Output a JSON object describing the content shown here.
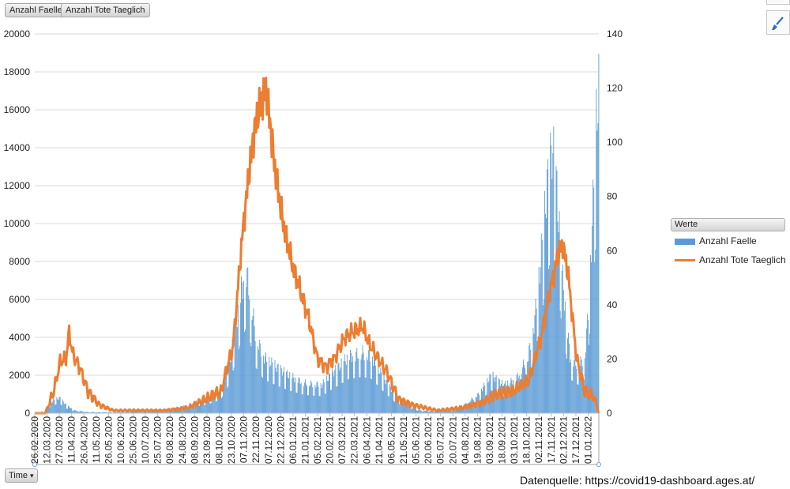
{
  "field_buttons": [
    "Anzahl Faelle",
    "Anzahl Tote Taeglich"
  ],
  "axis_button": {
    "label": "Time",
    "arrow": "▾"
  },
  "source_text": "Datenquelle: https://covid19-dashboard.ages.at/",
  "colors": {
    "cases": "#5b9bd5",
    "deaths": "#ed7d31",
    "grid": "#d9d9d9"
  },
  "legend": {
    "header": "Werte",
    "placement": "right",
    "items": [
      "Anzahl Faelle",
      "Anzahl Tote Taeglich"
    ]
  },
  "icons": {
    "format_tool": "paintbrush-icon"
  },
  "chart_data": {
    "type": "bar+line",
    "xlabel": "",
    "ylabel": "",
    "x_range": [
      "2020-02-26",
      "2022-01-14"
    ],
    "x_tick_step_days": 15,
    "x_ticks": [
      "26.02.2020",
      "12.03.2020",
      "27.03.2020",
      "11.04.2020",
      "26.04.2020",
      "11.05.2020",
      "26.05.2020",
      "10.06.2020",
      "25.06.2020",
      "10.07.2020",
      "25.07.2020",
      "09.08.2020",
      "24.08.2020",
      "08.09.2020",
      "23.09.2020",
      "08.10.2020",
      "23.10.2020",
      "07.11.2020",
      "22.11.2020",
      "07.12.2020",
      "22.12.2020",
      "06.01.2021",
      "21.01.2021",
      "05.02.2021",
      "20.02.2021",
      "07.03.2021",
      "22.03.2021",
      "06.04.2021",
      "21.04.2021",
      "06.05.2021",
      "21.05.2021",
      "05.06.2021",
      "20.06.2021",
      "05.07.2021",
      "20.07.2021",
      "04.08.2021",
      "19.08.2021",
      "03.09.2021",
      "18.09.2021",
      "03.10.2021",
      "18.10.2021",
      "02.11.2021",
      "17.11.2021",
      "02.12.2021",
      "17.12.2021",
      "01.01.2022"
    ],
    "y_left": {
      "range": [
        0,
        20000
      ],
      "ticks": [
        "0",
        "2000",
        "4000",
        "6000",
        "8000",
        "10000",
        "12000",
        "14000",
        "16000",
        "18000",
        "20000"
      ]
    },
    "y_right": {
      "range": [
        0,
        140
      ],
      "ticks": [
        "0",
        "20",
        "40",
        "60",
        "80",
        "100",
        "120",
        "140"
      ]
    },
    "grid": "horizontal",
    "series": [
      {
        "name": "Anzahl Faelle",
        "kind": "bar",
        "axis": "left",
        "keyframes": [
          [
            "2020-02-26",
            0
          ],
          [
            "2020-03-08",
            100
          ],
          [
            "2020-03-15",
            500
          ],
          [
            "2020-03-22",
            750
          ],
          [
            "2020-03-28",
            800
          ],
          [
            "2020-04-05",
            400
          ],
          [
            "2020-04-15",
            150
          ],
          [
            "2020-05-01",
            60
          ],
          [
            "2020-06-01",
            50
          ],
          [
            "2020-07-01",
            100
          ],
          [
            "2020-08-01",
            150
          ],
          [
            "2020-08-20",
            300
          ],
          [
            "2020-09-10",
            600
          ],
          [
            "2020-09-25",
            800
          ],
          [
            "2020-10-10",
            1200
          ],
          [
            "2020-10-20",
            2500
          ],
          [
            "2020-10-28",
            4500
          ],
          [
            "2020-11-04",
            6500
          ],
          [
            "2020-11-10",
            7500
          ],
          [
            "2020-11-14",
            6500
          ],
          [
            "2020-11-22",
            4000
          ],
          [
            "2020-12-01",
            3000
          ],
          [
            "2020-12-15",
            2500
          ],
          [
            "2021-01-01",
            2000
          ],
          [
            "2021-01-20",
            1600
          ],
          [
            "2021-02-10",
            1500
          ],
          [
            "2021-02-25",
            2200
          ],
          [
            "2021-03-15",
            3000
          ],
          [
            "2021-04-01",
            3200
          ],
          [
            "2021-04-12",
            3000
          ],
          [
            "2021-04-25",
            2000
          ],
          [
            "2021-05-10",
            1000
          ],
          [
            "2021-05-25",
            500
          ],
          [
            "2021-06-10",
            150
          ],
          [
            "2021-07-01",
            120
          ],
          [
            "2021-07-20",
            250
          ],
          [
            "2021-08-05",
            500
          ],
          [
            "2021-08-20",
            1000
          ],
          [
            "2021-09-05",
            2000
          ],
          [
            "2021-09-20",
            1500
          ],
          [
            "2021-10-05",
            1800
          ],
          [
            "2021-10-20",
            3000
          ],
          [
            "2021-10-28",
            5000
          ],
          [
            "2021-11-05",
            8500
          ],
          [
            "2021-11-12",
            12000
          ],
          [
            "2021-11-18",
            14000
          ],
          [
            "2021-11-22",
            13000
          ],
          [
            "2021-12-01",
            7000
          ],
          [
            "2021-12-10",
            3000
          ],
          [
            "2021-12-20",
            2500
          ],
          [
            "2021-12-28",
            3000
          ],
          [
            "2022-01-02",
            6000
          ],
          [
            "2022-01-07",
            11000
          ],
          [
            "2022-01-11",
            15500
          ],
          [
            "2022-01-14",
            17300
          ]
        ]
      },
      {
        "name": "Anzahl Tote Taeglich",
        "kind": "line",
        "axis": "right",
        "keyframes": [
          [
            "2020-02-26",
            0
          ],
          [
            "2020-03-10",
            0
          ],
          [
            "2020-03-20",
            8
          ],
          [
            "2020-03-28",
            19
          ],
          [
            "2020-04-04",
            20
          ],
          [
            "2020-04-08",
            30
          ],
          [
            "2020-04-12",
            22
          ],
          [
            "2020-04-22",
            16
          ],
          [
            "2020-05-01",
            8
          ],
          [
            "2020-05-15",
            3
          ],
          [
            "2020-06-01",
            1
          ],
          [
            "2020-07-01",
            1
          ],
          [
            "2020-08-01",
            1
          ],
          [
            "2020-09-01",
            2
          ],
          [
            "2020-09-20",
            5
          ],
          [
            "2020-10-10",
            8
          ],
          [
            "2020-10-25",
            25
          ],
          [
            "2020-11-05",
            65
          ],
          [
            "2020-11-12",
            85
          ],
          [
            "2020-11-20",
            105
          ],
          [
            "2020-11-28",
            115
          ],
          [
            "2020-12-03",
            120
          ],
          [
            "2020-12-08",
            110
          ],
          [
            "2020-12-15",
            90
          ],
          [
            "2020-12-25",
            70
          ],
          [
            "2021-01-05",
            55
          ],
          [
            "2021-01-15",
            45
          ],
          [
            "2021-01-25",
            35
          ],
          [
            "2021-02-05",
            20
          ],
          [
            "2021-02-15",
            17
          ],
          [
            "2021-02-25",
            20
          ],
          [
            "2021-03-10",
            28
          ],
          [
            "2021-03-20",
            30
          ],
          [
            "2021-04-01",
            32
          ],
          [
            "2021-04-10",
            25
          ],
          [
            "2021-04-20",
            20
          ],
          [
            "2021-05-01",
            15
          ],
          [
            "2021-05-15",
            5
          ],
          [
            "2021-06-01",
            3
          ],
          [
            "2021-07-01",
            1
          ],
          [
            "2021-08-01",
            2
          ],
          [
            "2021-08-25",
            4
          ],
          [
            "2021-09-10",
            7
          ],
          [
            "2021-10-01",
            8
          ],
          [
            "2021-10-20",
            12
          ],
          [
            "2021-11-05",
            28
          ],
          [
            "2021-11-15",
            45
          ],
          [
            "2021-11-25",
            58
          ],
          [
            "2021-12-01",
            63
          ],
          [
            "2021-12-08",
            50
          ],
          [
            "2021-12-18",
            20
          ],
          [
            "2021-12-28",
            8
          ],
          [
            "2022-01-08",
            6
          ],
          [
            "2022-01-14",
            0
          ]
        ]
      }
    ]
  }
}
